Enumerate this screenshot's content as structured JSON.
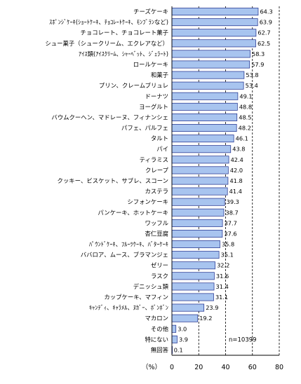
{
  "chart_data": {
    "type": "bar",
    "orientation": "horizontal",
    "categories": [
      "チーズケーキ",
      "ｽﾎﾟﾝｼﾞｹｰｷ(ｼｮｰﾄｹｰｷ、ﾁｮｺﾚｰﾄｹｰｷ、ﾓﾝﾌﾞﾗﾝなど)",
      "チョコレート、チョコレート菓子",
      "シュー菓子（シュークリーム、エクレアなど）",
      "ｱｲｽ類(ｱｲｽｸﾘｰﾑ、ｼｬｰﾍﾞｯﾄ、ｼﾞｪﾗｰﾄ)",
      "ロールケーキ",
      "和菓子",
      "プリン、クレームブリュレ",
      "ドーナツ",
      "ヨーグルト",
      "バウムクーヘン、マドレーヌ、フィナンシェ",
      "パフェ、パルフェ",
      "タルト",
      "パイ",
      "ティラミス",
      "クレープ",
      "クッキー、ビスケット、サブレ、スコーン",
      "カステラ",
      "シフォンケーキ",
      "パンケーキ、ホットケーキ",
      "ワッフル",
      "杏仁豆腐",
      "ﾊﾟｳﾝﾄﾞｹｰｷ、ﾌﾙｰﾂｹｰｷ、ﾊﾞﾀｰｹｰｷ",
      "ババロア、ムース、ブラマンジェ",
      "ゼリー",
      "ラスク",
      "デニッシュ類",
      "カップケーキ、マフィン",
      "ｷｬﾝﾃﾞｨ、ｷｬﾗﾒﾙ、ﾇｶﾞｰ、ﾎﾞﾝﾎﾞﾝ",
      "マカロン",
      "その他",
      "特にない",
      "無回答"
    ],
    "values": [
      64.3,
      63.9,
      62.7,
      62.5,
      58.3,
      57.9,
      53.8,
      53.4,
      49.1,
      48.8,
      48.5,
      48.2,
      46.1,
      43.8,
      42.4,
      42.0,
      41.8,
      41.4,
      39.3,
      38.7,
      37.7,
      37.6,
      35.8,
      35.1,
      32.2,
      31.6,
      31.4,
      31.1,
      23.9,
      19.2,
      3.0,
      3.9,
      0.1
    ],
    "value_labels": [
      "64.3",
      "63.9",
      "62.7",
      "62.5",
      "58.3",
      "57.9",
      "53.8",
      "53.4",
      "49.1",
      "48.8",
      "48.5",
      "48.2",
      "46.1",
      "43.8",
      "42.4",
      "42.0",
      "41.8",
      "41.4",
      "39.3",
      "38.7",
      "37.7",
      "37.6",
      "35.8",
      "35.1",
      "32.2",
      "31.6",
      "31.4",
      "31.1",
      "23.9",
      "19.2",
      "3.0",
      "3.9",
      "0.1"
    ],
    "xlim": [
      0,
      80
    ],
    "xticks": [
      0,
      20,
      40,
      60,
      80
    ],
    "xtick_labels": [
      "0",
      "20",
      "40",
      "60",
      "80"
    ],
    "xunit": "（%）",
    "grid": "dashed vertical",
    "annotation": "n=10399",
    "colors": {
      "bar_fill": "#a8c4ef",
      "bar_stroke": "#1a2a8a",
      "axis": "#000000",
      "grid": "#000000"
    }
  }
}
